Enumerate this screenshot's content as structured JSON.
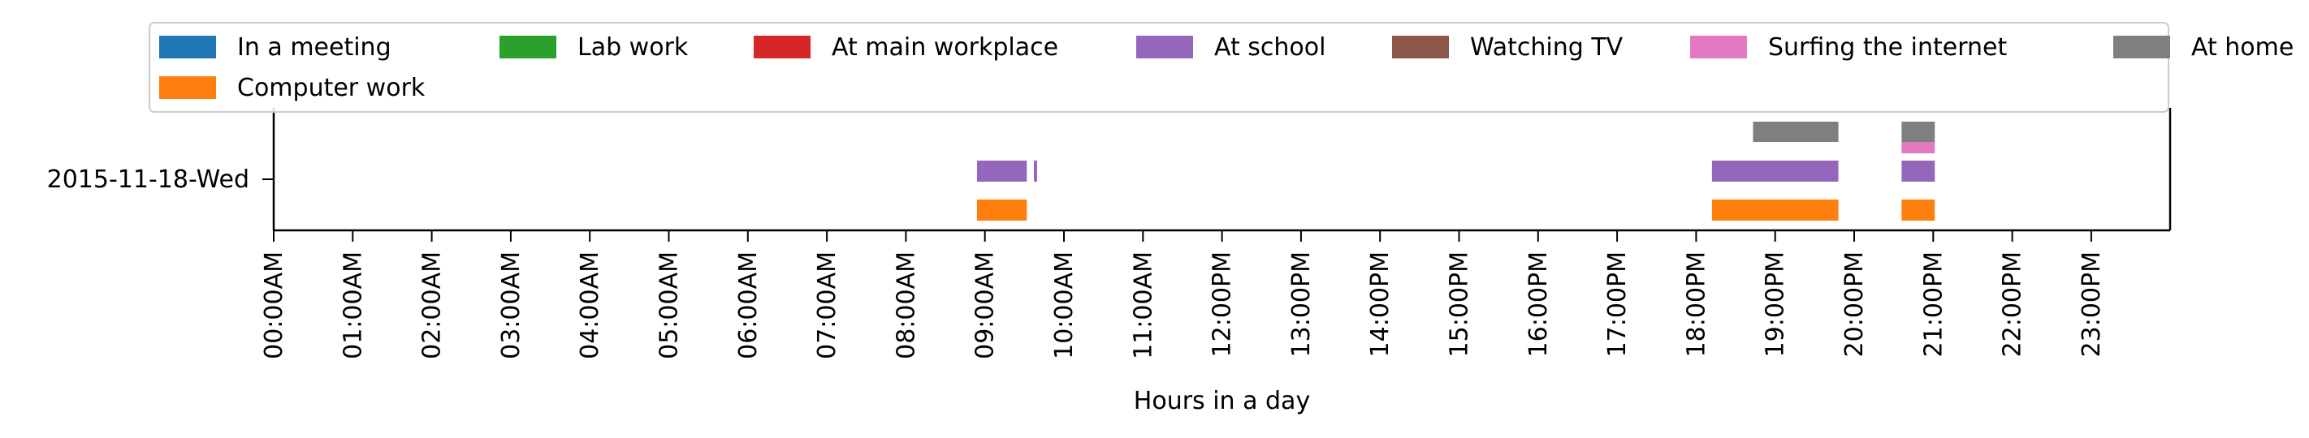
{
  "chart_data": {
    "type": "bar",
    "orientation": "horizontal-timeline",
    "title": "",
    "xlabel": "Hours in a day",
    "ylabel": "",
    "xlim": [
      0,
      24
    ],
    "grid": false,
    "legend_placement": "top",
    "x_ticks": [
      "00:00AM",
      "01:00AM",
      "02:00AM",
      "03:00AM",
      "04:00AM",
      "05:00AM",
      "06:00AM",
      "07:00AM",
      "08:00AM",
      "09:00AM",
      "10:00AM",
      "11:00AM",
      "12:00PM",
      "13:00PM",
      "14:00PM",
      "15:00PM",
      "16:00PM",
      "17:00PM",
      "18:00PM",
      "19:00PM",
      "20:00PM",
      "21:00PM",
      "22:00PM",
      "23:00PM"
    ],
    "categories": [
      "2015-11-18-Wed"
    ],
    "series": [
      {
        "name": "In a meeting",
        "color": "#1f77b4",
        "intervals": []
      },
      {
        "name": "Computer work",
        "color": "#ff7f0e",
        "intervals": [
          [
            8.9,
            9.53
          ],
          [
            18.2,
            19.8
          ],
          [
            20.6,
            21.02
          ]
        ]
      },
      {
        "name": "Lab work",
        "color": "#2ca02c",
        "intervals": []
      },
      {
        "name": "At main workplace",
        "color": "#d62728",
        "intervals": []
      },
      {
        "name": "At school",
        "color": "#9467bd",
        "intervals": [
          [
            8.9,
            9.53
          ],
          [
            9.62,
            9.66
          ],
          [
            18.2,
            19.8
          ],
          [
            20.6,
            21.02
          ]
        ]
      },
      {
        "name": "Watching TV",
        "color": "#8c564b",
        "intervals": []
      },
      {
        "name": "Surfing the internet",
        "color": "#e377c2",
        "intervals": [
          [
            20.6,
            21.02
          ]
        ]
      },
      {
        "name": "At home",
        "color": "#7f7f7f",
        "intervals": [
          [
            18.72,
            19.8
          ],
          [
            20.6,
            21.02
          ]
        ]
      }
    ]
  }
}
